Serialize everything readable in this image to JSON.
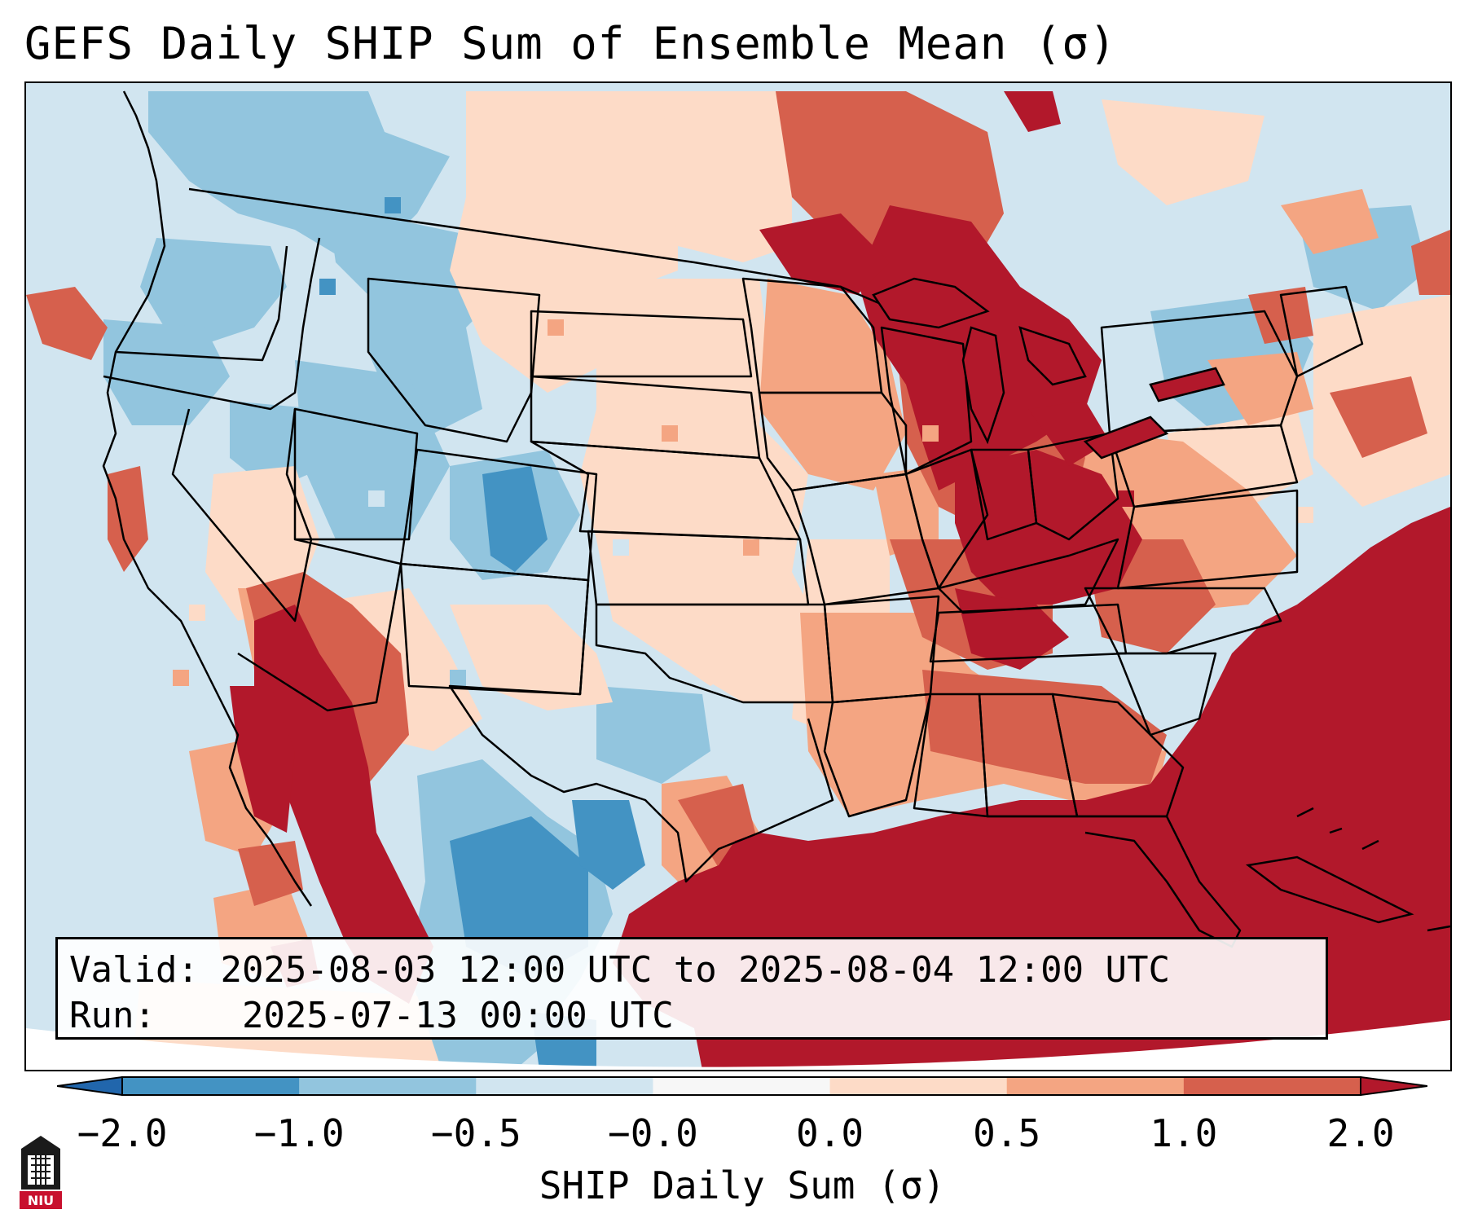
{
  "title": "GEFS Daily SHIP Sum of Ensemble Mean (σ)",
  "info": {
    "valid_label": "Valid:",
    "valid_value": "2025-08-03 12:00 UTC to 2025-08-04 12:00 UTC",
    "run_label": "Run:",
    "run_value": "2025-07-13 00:00 UTC"
  },
  "colorbar": {
    "label": "SHIP Daily Sum (σ)",
    "tick_labels": [
      "−2.0",
      "−1.0",
      "−0.5",
      "−0.0",
      "0.0",
      "0.5",
      "1.0",
      "2.0"
    ],
    "bins": [
      {
        "range": "< -2.0",
        "color": "#2166ac"
      },
      {
        "range": "-2.0 to -1.0",
        "color": "#4393c3"
      },
      {
        "range": "-1.0 to -0.5",
        "color": "#92c5de"
      },
      {
        "range": "-0.5 to -0.0",
        "color": "#d1e5f0"
      },
      {
        "range": "-0.0 to 0.0",
        "color": "#f7f7f7"
      },
      {
        "range": "0.0 to 0.5",
        "color": "#fddbc7"
      },
      {
        "range": "0.5 to 1.0",
        "color": "#f4a582"
      },
      {
        "range": "1.0 to 2.0",
        "color": "#d6604d"
      },
      {
        "range": "> 2.0",
        "color": "#b2182b"
      }
    ]
  },
  "map": {
    "domain": "Contiguous United States with Gulf of Mexico and western Atlantic",
    "projection_edge": "lambert-conformal"
  },
  "logo": {
    "name": "NIU",
    "text": "NIU"
  }
}
